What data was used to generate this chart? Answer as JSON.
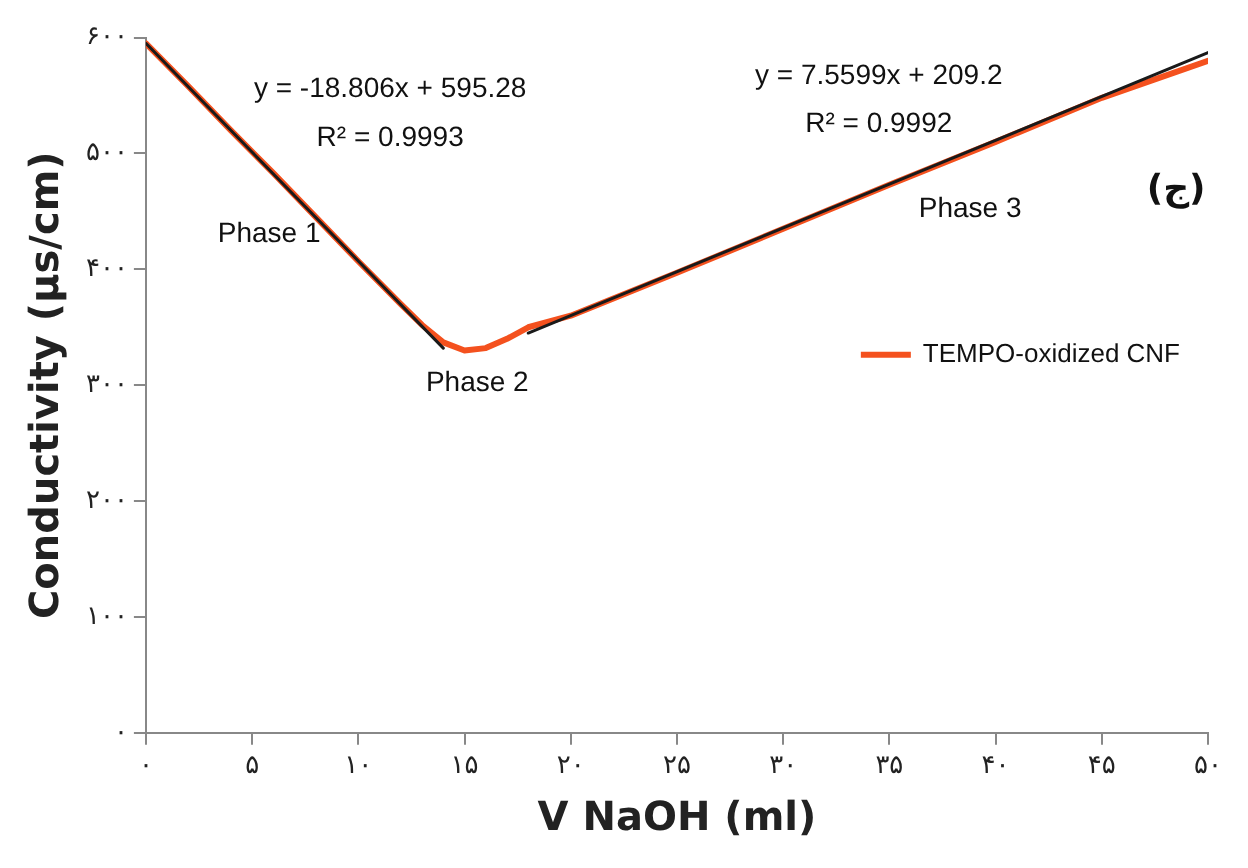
{
  "chart_data": {
    "type": "line",
    "xlabel": "V NaOH (ml)",
    "ylabel": "Conductivity (µs/cm)",
    "xlim": [
      0,
      50
    ],
    "ylim": [
      0,
      600
    ],
    "xticks": [
      {
        "value": 0,
        "label": "۰"
      },
      {
        "value": 5,
        "label": "۵"
      },
      {
        "value": 10,
        "label": "۱۰"
      },
      {
        "value": 15,
        "label": "۱۵"
      },
      {
        "value": 20,
        "label": "۲۰"
      },
      {
        "value": 25,
        "label": "۲۵"
      },
      {
        "value": 30,
        "label": "۳۰"
      },
      {
        "value": 35,
        "label": "۳۵"
      },
      {
        "value": 40,
        "label": "۴۰"
      },
      {
        "value": 45,
        "label": "۴۵"
      },
      {
        "value": 50,
        "label": "۵۰"
      }
    ],
    "yticks": [
      {
        "value": 0,
        "label": "۰"
      },
      {
        "value": 100,
        "label": "۱۰۰"
      },
      {
        "value": 200,
        "label": "۲۰۰"
      },
      {
        "value": 300,
        "label": "۳۰۰"
      },
      {
        "value": 400,
        "label": "۴۰۰"
      },
      {
        "value": 500,
        "label": "۵۰۰"
      },
      {
        "value": 600,
        "label": "۶۰۰"
      }
    ],
    "grid": false,
    "legend": "right",
    "marker": "none",
    "line_style": "solid",
    "series": [
      {
        "name": "TEMPO-oxidized CNF",
        "color": "#f4511e",
        "x": [
          0,
          2,
          4,
          6,
          8,
          10,
          12,
          13,
          14,
          15,
          16,
          17,
          18,
          20,
          25,
          30,
          35,
          40,
          45,
          50
        ],
        "values": [
          595,
          558,
          520,
          483,
          445,
          407,
          370,
          352,
          337,
          330,
          332,
          340,
          350,
          360,
          397,
          435,
          473,
          510,
          548,
          580
        ]
      },
      {
        "color": "#1a1a1a",
        "x": [
          0,
          14
        ],
        "values": [
          595,
          332
        ]
      },
      {
        "color": "#1a1a1a",
        "x": [
          18,
          50
        ],
        "values": [
          345,
          587
        ]
      }
    ],
    "annotations": [
      "y = -18.806x + 595.28",
      "R² = 0.9993",
      "y = 7.5599x + 209.2",
      "R² = 0.9992",
      "Phase 1",
      "Phase 2",
      "Phase 3",
      "(ج)"
    ]
  }
}
